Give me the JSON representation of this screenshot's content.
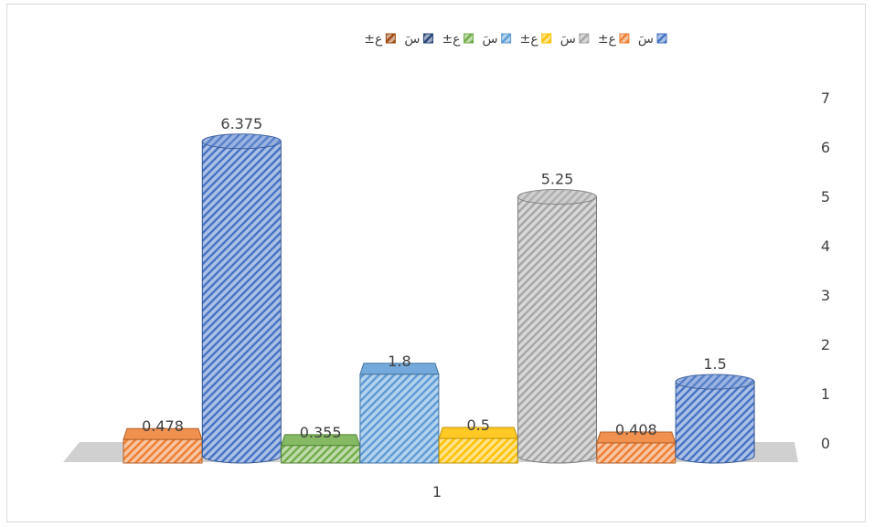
{
  "chart_data": {
    "type": "bar",
    "categories": [
      "1"
    ],
    "series": [
      {
        "name": "±ع",
        "values": [
          0.478
        ],
        "color": "#ed7d31",
        "shape": "box"
      },
      {
        "name": "سَ",
        "values": [
          6.375
        ],
        "color": "#4472c4",
        "shape": "cylinder"
      },
      {
        "name": "±ع",
        "values": [
          0.355
        ],
        "color": "#70ad47",
        "shape": "box"
      },
      {
        "name": "سَ",
        "values": [
          1.8
        ],
        "color": "#5b9bd5",
        "shape": "box"
      },
      {
        "name": "±ع",
        "values": [
          0.5
        ],
        "color": "#ffc000",
        "shape": "box"
      },
      {
        "name": "سَ",
        "values": [
          5.25
        ],
        "color": "#a5a5a5",
        "shape": "cylinder"
      },
      {
        "name": "±ع",
        "values": [
          0.408
        ],
        "color": "#ed7d31",
        "shape": "box"
      },
      {
        "name": "سَ",
        "values": [
          1.5
        ],
        "color": "#4472c4",
        "shape": "cylinder"
      }
    ],
    "data_labels": [
      "0.478",
      "6.375",
      "0.355",
      "1.8",
      "0.5",
      "5.25",
      "0.408",
      "1.5"
    ],
    "yticks": [
      "0",
      "1",
      "2",
      "3",
      "4",
      "5",
      "6",
      "7"
    ],
    "ylim": [
      0,
      7
    ],
    "legend": {
      "placement": "top",
      "entries": [
        {
          "label": "سَ",
          "color": "#4472c4"
        },
        {
          "label": "±ع",
          "color": "#ed7d31"
        },
        {
          "label": "سَ",
          "color": "#a5a5a5"
        },
        {
          "label": "±ع",
          "color": "#ffc000"
        },
        {
          "label": "سَ",
          "color": "#5b9bd5"
        },
        {
          "label": "±ع",
          "color": "#70ad47"
        },
        {
          "label": "سَ",
          "color": "#264478"
        },
        {
          "label": "±ع",
          "color": "#9e480e"
        }
      ]
    },
    "grid": false
  }
}
